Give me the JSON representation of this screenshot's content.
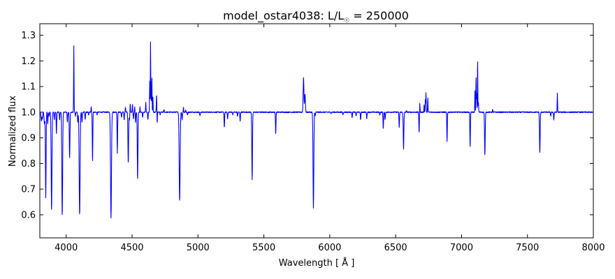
{
  "chart_data": {
    "type": "line",
    "title_main": "model_ostar4038: L/L",
    "title_sub": "☉",
    "title_tail": " = 250000",
    "xlabel": "Wavelength [ Å ]",
    "ylabel": "Normalized flux",
    "xlim": [
      3800,
      8000
    ],
    "ylim": [
      0.51,
      1.345
    ],
    "x_ticks": [
      4000,
      4500,
      5000,
      5500,
      6000,
      6500,
      7000,
      7500,
      8000
    ],
    "y_ticks": [
      0.6,
      0.7,
      0.8,
      0.9,
      1.0,
      1.1,
      1.2,
      1.3
    ],
    "grid": false,
    "series": [
      {
        "color": "#0000ff",
        "continuum": 1.0,
        "lines": [
          [
            3812,
            0.965,
            3
          ],
          [
            3820,
            0.975,
            2
          ],
          [
            3835,
            0.955,
            3
          ],
          [
            3845,
            0.665,
            2.5
          ],
          [
            3860,
            0.955,
            2
          ],
          [
            3870,
            0.985,
            2
          ],
          [
            3889,
            0.618,
            3
          ],
          [
            3910,
            0.97,
            2
          ],
          [
            3926,
            0.915,
            2
          ],
          [
            3950,
            0.97,
            2
          ],
          [
            3970,
            0.595,
            3
          ],
          [
            4009,
            0.96,
            2
          ],
          [
            4026,
            0.82,
            2.5
          ],
          [
            4058,
            1.26,
            1.5
          ],
          [
            4070,
            0.985,
            2
          ],
          [
            4088,
            0.96,
            2
          ],
          [
            4102,
            0.6,
            3.5
          ],
          [
            4120,
            0.96,
            2
          ],
          [
            4144,
            0.97,
            2
          ],
          [
            4170,
            0.99,
            2
          ],
          [
            4190,
            1.02,
            1.5
          ],
          [
            4200,
            0.805,
            2
          ],
          [
            4234,
            0.99,
            2
          ],
          [
            4340,
            0.587,
            3.5
          ],
          [
            4388,
            0.84,
            2
          ],
          [
            4420,
            0.98,
            2
          ],
          [
            4440,
            0.97,
            2
          ],
          [
            4450,
            1.02,
            1.5
          ],
          [
            4471,
            0.8,
            2.5
          ],
          [
            4480,
            0.97,
            2
          ],
          [
            4486,
            1.035,
            1.5
          ],
          [
            4503,
            1.03,
            1.5
          ],
          [
            4510,
            0.975,
            2
          ],
          [
            4520,
            1.02,
            1.5
          ],
          [
            4526,
            0.96,
            2
          ],
          [
            4542,
            0.735,
            2.5
          ],
          [
            4560,
            1.02,
            1.5
          ],
          [
            4580,
            0.98,
            2
          ],
          [
            4604,
            1.04,
            1.5
          ],
          [
            4620,
            0.97,
            2
          ],
          [
            4634,
            1.12,
            1.5
          ],
          [
            4640,
            1.275,
            1.5
          ],
          [
            4645,
            1.05,
            1.5
          ],
          [
            4650,
            1.14,
            1.5
          ],
          [
            4658,
            1.06,
            1.5
          ],
          [
            4686,
            1.07,
            2
          ],
          [
            4690,
            0.945,
            1.5
          ],
          [
            4713,
            0.99,
            2
          ],
          [
            4742,
            1.01,
            2
          ],
          [
            4861,
            0.652,
            3.5
          ],
          [
            4880,
            0.97,
            2
          ],
          [
            4890,
            1.02,
            1.5
          ],
          [
            4907,
            1.01,
            1.5
          ],
          [
            4921,
            0.99,
            2
          ],
          [
            5015,
            0.985,
            2
          ],
          [
            5200,
            0.94,
            2
          ],
          [
            5225,
            0.975,
            2
          ],
          [
            5265,
            0.99,
            2
          ],
          [
            5300,
            0.985,
            2
          ],
          [
            5320,
            0.965,
            2
          ],
          [
            5411,
            0.735,
            2.5
          ],
          [
            5470,
            1.0,
            2
          ],
          [
            5590,
            0.915,
            2
          ],
          [
            5801,
            1.135,
            3
          ],
          [
            5812,
            1.07,
            3
          ],
          [
            5876,
            0.626,
            3
          ],
          [
            5890,
            0.985,
            2
          ],
          [
            6010,
            0.995,
            2
          ],
          [
            6100,
            0.99,
            2
          ],
          [
            6170,
            0.98,
            2
          ],
          [
            6200,
            0.985,
            2
          ],
          [
            6234,
            0.97,
            2
          ],
          [
            6281,
            0.975,
            2
          ],
          [
            6380,
            0.99,
            2
          ],
          [
            6406,
            0.935,
            2
          ],
          [
            6420,
            0.97,
            2
          ],
          [
            6527,
            0.94,
            2
          ],
          [
            6560,
            0.855,
            2.5
          ],
          [
            6583,
            1.005,
            2
          ],
          [
            6678,
            0.92,
            2
          ],
          [
            6683,
            1.04,
            1.5
          ],
          [
            6716,
            1.03,
            1.5
          ],
          [
            6725,
            1.05,
            1.5
          ],
          [
            6730,
            1.08,
            1.5
          ],
          [
            6744,
            1.06,
            1.5
          ],
          [
            6890,
            0.885,
            2
          ],
          [
            7065,
            0.86,
            2
          ],
          [
            7102,
            1.09,
            1.5
          ],
          [
            7110,
            1.14,
            1.5
          ],
          [
            7115,
            1.07,
            1.5
          ],
          [
            7122,
            1.205,
            1.5
          ],
          [
            7128,
            1.04,
            1.5
          ],
          [
            7177,
            0.83,
            2.5
          ],
          [
            7236,
            1.01,
            1.5
          ],
          [
            7300,
            1.0,
            2
          ],
          [
            7594,
            0.84,
            2.5
          ],
          [
            7677,
            0.985,
            2
          ],
          [
            7700,
            0.97,
            2
          ],
          [
            7727,
            1.075,
            1.5
          ],
          [
            7760,
            1.0,
            2
          ]
        ]
      }
    ]
  }
}
